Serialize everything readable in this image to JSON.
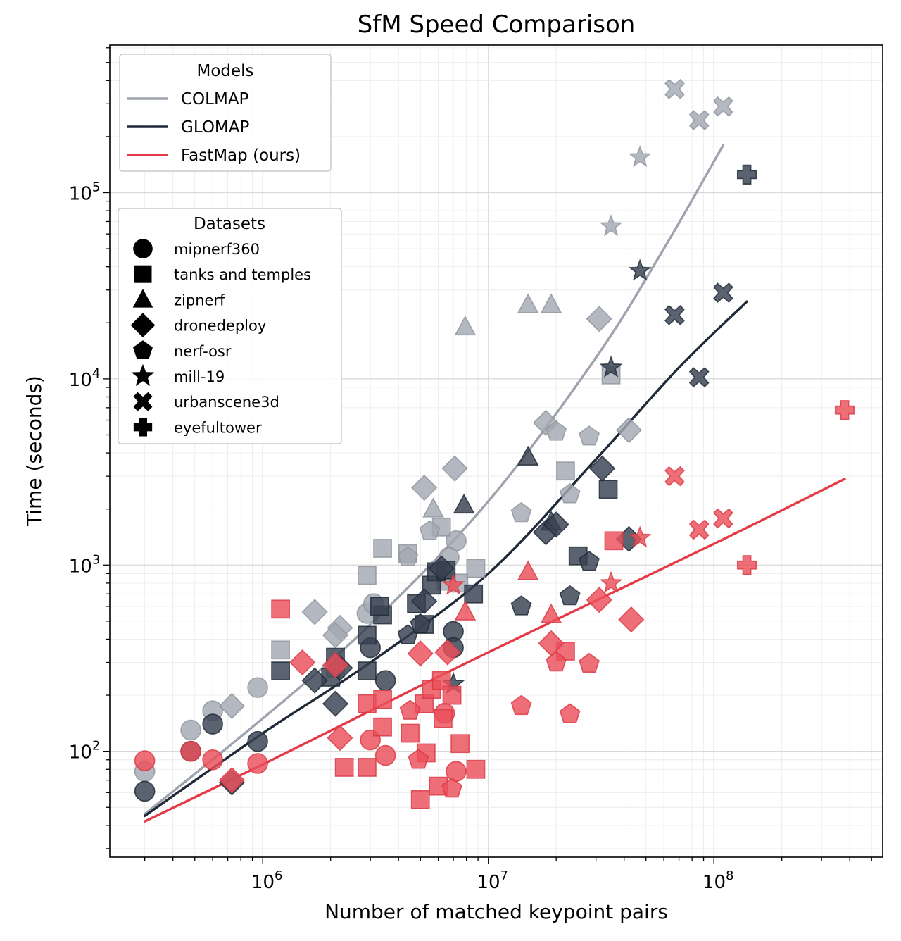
{
  "chart_data": {
    "type": "scatter",
    "title": "SfM Speed Comparison",
    "xlabel": "Number of matched keypoint pairs",
    "ylabel": "Time (seconds)",
    "xscale": "log",
    "yscale": "log",
    "xlim": [
      210000,
      560000000
    ],
    "ylim": [
      27,
      620000
    ],
    "grid": true,
    "x_ticks": [
      {
        "value": 1000000,
        "base": "10",
        "exp": "6"
      },
      {
        "value": 10000000,
        "base": "10",
        "exp": "7"
      },
      {
        "value": 100000000,
        "base": "10",
        "exp": "8"
      }
    ],
    "y_ticks": [
      {
        "value": 100,
        "base": "10",
        "exp": "2"
      },
      {
        "value": 1000,
        "base": "10",
        "exp": "3"
      },
      {
        "value": 10000,
        "base": "10",
        "exp": "4"
      },
      {
        "value": 100000,
        "base": "10",
        "exp": "5"
      }
    ],
    "models_legend": {
      "title": "Models",
      "location": "upper-left",
      "entries": [
        {
          "name": "COLMAP",
          "color": "#9ea3ae"
        },
        {
          "name": "GLOMAP",
          "color": "#1f2937"
        },
        {
          "name": "FastMap (ours)",
          "color": "#e63946"
        }
      ]
    },
    "datasets_legend": {
      "title": "Datasets",
      "location": "upper-left",
      "entries": [
        {
          "name": "mipnerf360",
          "marker": "circle"
        },
        {
          "name": "tanks and temples",
          "marker": "square"
        },
        {
          "name": "zipnerf",
          "marker": "triangle"
        },
        {
          "name": "dronedeploy",
          "marker": "diamond"
        },
        {
          "name": "nerf-osr",
          "marker": "pentagon"
        },
        {
          "name": "mill-19",
          "marker": "star"
        },
        {
          "name": "urbanscene3d",
          "marker": "x"
        },
        {
          "name": "eyefultower",
          "marker": "plus"
        }
      ]
    },
    "fit_lines": [
      {
        "model": "COLMAP",
        "points": [
          [
            300000,
            46
          ],
          [
            1000000,
            150
          ],
          [
            3000000,
            480
          ],
          [
            10000000,
            2200
          ],
          [
            30000000,
            13000
          ],
          [
            60000000,
            50000
          ],
          [
            110000000,
            180000
          ]
        ]
      },
      {
        "model": "GLOMAP",
        "points": [
          [
            300000,
            45
          ],
          [
            1000000,
            125
          ],
          [
            3000000,
            300
          ],
          [
            10000000,
            900
          ],
          [
            30000000,
            3700
          ],
          [
            70000000,
            11500
          ],
          [
            140000000,
            26000
          ]
        ]
      },
      {
        "model": "FastMap (ours)",
        "points": [
          [
            300000,
            42
          ],
          [
            1000000,
            85
          ],
          [
            3000000,
            165
          ],
          [
            10000000,
            340
          ],
          [
            100000000,
            1300
          ],
          [
            380000000,
            2900
          ]
        ]
      }
    ],
    "series": [
      {
        "model": "COLMAP",
        "dataset": "mipnerf360",
        "points": [
          [
            300000,
            78
          ],
          [
            480000,
            130
          ],
          [
            600000,
            165
          ],
          [
            950000,
            220
          ],
          [
            2900000,
            550
          ],
          [
            3100000,
            620
          ],
          [
            7200000,
            1350
          ],
          [
            6700000,
            1100
          ]
        ]
      },
      {
        "model": "COLMAP",
        "dataset": "tanks and temples",
        "points": [
          [
            1200000,
            350
          ],
          [
            2100000,
            280
          ],
          [
            2900000,
            880
          ],
          [
            3400000,
            1230
          ],
          [
            4400000,
            1150
          ],
          [
            6200000,
            1600
          ],
          [
            6500000,
            820
          ],
          [
            7400000,
            800
          ],
          [
            8800000,
            960
          ],
          [
            22000000,
            3200
          ],
          [
            35000000,
            10500
          ]
        ]
      },
      {
        "model": "COLMAP",
        "dataset": "zipnerf",
        "points": [
          [
            5700000,
            2000
          ],
          [
            7900000,
            19000
          ],
          [
            15000000,
            25000
          ],
          [
            19000000,
            25000
          ]
        ]
      },
      {
        "model": "COLMAP",
        "dataset": "dronedeploy",
        "points": [
          [
            730000,
            175
          ],
          [
            1700000,
            560
          ],
          [
            2200000,
            460
          ],
          [
            2100000,
            420
          ],
          [
            5200000,
            2600
          ],
          [
            7100000,
            3300
          ],
          [
            18000000,
            5800
          ],
          [
            31000000,
            21000
          ],
          [
            42000000,
            5300
          ]
        ]
      },
      {
        "model": "COLMAP",
        "dataset": "nerf-osr",
        "points": [
          [
            5500000,
            1520
          ],
          [
            4400000,
            1100
          ],
          [
            14000000,
            1900
          ],
          [
            20000000,
            5200
          ],
          [
            23000000,
            2400
          ],
          [
            28000000,
            4900
          ]
        ]
      },
      {
        "model": "COLMAP",
        "dataset": "mill-19",
        "points": [
          [
            35000000,
            66000
          ],
          [
            47000000,
            155000
          ]
        ]
      },
      {
        "model": "COLMAP",
        "dataset": "urbanscene3d",
        "points": [
          [
            67000000,
            360000
          ],
          [
            86000000,
            245000
          ],
          [
            110000000,
            290000
          ]
        ]
      },
      {
        "model": "GLOMAP",
        "dataset": "mipnerf360",
        "points": [
          [
            300000,
            61
          ],
          [
            480000,
            100
          ],
          [
            600000,
            140
          ],
          [
            950000,
            113
          ],
          [
            3000000,
            360
          ],
          [
            3500000,
            240
          ],
          [
            7000000,
            440
          ],
          [
            7000000,
            360
          ]
        ]
      },
      {
        "model": "GLOMAP",
        "dataset": "tanks and temples",
        "points": [
          [
            1200000,
            270
          ],
          [
            2100000,
            320
          ],
          [
            2000000,
            250
          ],
          [
            2900000,
            420
          ],
          [
            2900000,
            270
          ],
          [
            3400000,
            540
          ],
          [
            3300000,
            600
          ],
          [
            4800000,
            620
          ],
          [
            5200000,
            480
          ],
          [
            5600000,
            780
          ],
          [
            5900000,
            920
          ],
          [
            6500000,
            940
          ],
          [
            8600000,
            700
          ],
          [
            25000000,
            1120
          ],
          [
            34000000,
            2550
          ]
        ]
      },
      {
        "model": "GLOMAP",
        "dataset": "zipnerf",
        "points": [
          [
            7800000,
            2100
          ],
          [
            15000000,
            3800
          ],
          [
            19000000,
            1700
          ]
        ]
      },
      {
        "model": "GLOMAP",
        "dataset": "dronedeploy",
        "points": [
          [
            730000,
            68
          ],
          [
            1700000,
            240
          ],
          [
            2100000,
            180
          ],
          [
            2200000,
            280
          ],
          [
            5200000,
            640
          ],
          [
            6200000,
            960
          ],
          [
            18000000,
            1500
          ],
          [
            20000000,
            1650
          ],
          [
            32000000,
            3300
          ],
          [
            42000000,
            1380
          ]
        ]
      },
      {
        "model": "GLOMAP",
        "dataset": "nerf-osr",
        "points": [
          [
            4400000,
            420
          ],
          [
            5000000,
            480
          ],
          [
            14000000,
            600
          ],
          [
            23000000,
            680
          ],
          [
            28000000,
            1040
          ]
        ]
      },
      {
        "model": "GLOMAP",
        "dataset": "mill-19",
        "points": [
          [
            35000000,
            11500
          ],
          [
            47000000,
            38000
          ],
          [
            7000000,
            230
          ]
        ]
      },
      {
        "model": "GLOMAP",
        "dataset": "urbanscene3d",
        "points": [
          [
            67000000,
            22000
          ],
          [
            86000000,
            10200
          ],
          [
            110000000,
            29000
          ]
        ]
      },
      {
        "model": "GLOMAP",
        "dataset": "eyefultower",
        "points": [
          [
            140000000,
            125000
          ]
        ]
      },
      {
        "model": "FastMap (ours)",
        "dataset": "mipnerf360",
        "points": [
          [
            300000,
            89
          ],
          [
            480000,
            100
          ],
          [
            600000,
            90
          ],
          [
            950000,
            86
          ],
          [
            3000000,
            115
          ],
          [
            3500000,
            95
          ],
          [
            6400000,
            160
          ],
          [
            7200000,
            78
          ]
        ]
      },
      {
        "model": "FastMap (ours)",
        "dataset": "tanks and temples",
        "points": [
          [
            1200000,
            580
          ],
          [
            2300000,
            82
          ],
          [
            2900000,
            82
          ],
          [
            2900000,
            180
          ],
          [
            3400000,
            135
          ],
          [
            3400000,
            190
          ],
          [
            4500000,
            125
          ],
          [
            5000000,
            55
          ],
          [
            5300000,
            98
          ],
          [
            5200000,
            180
          ],
          [
            5600000,
            215
          ],
          [
            6000000,
            65
          ],
          [
            6200000,
            240
          ],
          [
            6300000,
            150
          ],
          [
            6900000,
            200
          ],
          [
            7500000,
            110
          ],
          [
            8800000,
            80
          ],
          [
            22000000,
            345
          ],
          [
            36000000,
            1350
          ]
        ]
      },
      {
        "model": "FastMap (ours)",
        "dataset": "zipnerf",
        "points": [
          [
            7900000,
            560
          ],
          [
            15000000,
            920
          ],
          [
            19000000,
            540
          ]
        ]
      },
      {
        "model": "FastMap (ours)",
        "dataset": "dronedeploy",
        "points": [
          [
            730000,
            70
          ],
          [
            1500000,
            300
          ],
          [
            2200000,
            118
          ],
          [
            2100000,
            290
          ],
          [
            5000000,
            335
          ],
          [
            6600000,
            340
          ],
          [
            19000000,
            380
          ],
          [
            31000000,
            650
          ],
          [
            43000000,
            510
          ]
        ]
      },
      {
        "model": "FastMap (ours)",
        "dataset": "nerf-osr",
        "points": [
          [
            4500000,
            165
          ],
          [
            4900000,
            90
          ],
          [
            6900000,
            63
          ],
          [
            14000000,
            175
          ],
          [
            20000000,
            300
          ],
          [
            23000000,
            158
          ],
          [
            28000000,
            295
          ]
        ]
      },
      {
        "model": "FastMap (ours)",
        "dataset": "mill-19",
        "points": [
          [
            35000000,
            800
          ],
          [
            47000000,
            1400
          ],
          [
            7000000,
            780
          ]
        ]
      },
      {
        "model": "FastMap (ours)",
        "dataset": "urbanscene3d",
        "points": [
          [
            67000000,
            3000
          ],
          [
            86000000,
            1550
          ],
          [
            110000000,
            1780
          ]
        ]
      },
      {
        "model": "FastMap (ours)",
        "dataset": "eyefultower",
        "points": [
          [
            140000000,
            1000
          ],
          [
            380000000,
            6800
          ]
        ]
      }
    ]
  }
}
